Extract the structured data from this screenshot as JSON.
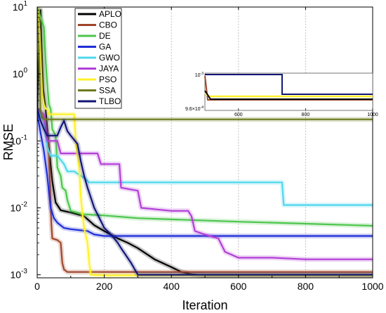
{
  "chart_data": {
    "type": "line",
    "title": "",
    "xlabel": "Iteration",
    "ylabel": "RMSE",
    "xlim": [
      0,
      1000
    ],
    "ylim": [
      0.0009,
      10
    ],
    "yscale": "log",
    "grid": "vertical dotted",
    "legend_position": "top-center",
    "x_ticks": [
      "0",
      "200",
      "400",
      "600",
      "800",
      "1000"
    ],
    "y_ticks": [
      {
        "base": "10",
        "exp": "1",
        "value": 10
      },
      {
        "base": "10",
        "exp": "0",
        "value": 1
      },
      {
        "base": "10",
        "exp": "-1",
        "value": 0.1
      },
      {
        "base": "10",
        "exp": "-2",
        "value": 0.01
      },
      {
        "base": "10",
        "exp": "-3",
        "value": 0.001
      }
    ],
    "series": [
      {
        "name": "APLO",
        "color": "#000000",
        "points": [
          [
            0,
            0.25
          ],
          [
            5,
            3.5
          ],
          [
            10,
            9
          ],
          [
            14,
            2
          ],
          [
            18,
            0.6
          ],
          [
            25,
            0.3
          ],
          [
            35,
            0.08
          ],
          [
            45,
            0.025
          ],
          [
            55,
            0.012
          ],
          [
            70,
            0.0092
          ],
          [
            100,
            0.0085
          ],
          [
            140,
            0.0075
          ],
          [
            170,
            0.0055
          ],
          [
            200,
            0.0045
          ],
          [
            240,
            0.0035
          ],
          [
            270,
            0.003
          ],
          [
            300,
            0.0025
          ],
          [
            350,
            0.0017
          ],
          [
            400,
            0.0013
          ],
          [
            430,
            0.0011
          ],
          [
            460,
            0.00102
          ],
          [
            500,
            0.00098
          ],
          [
            1000,
            0.00098
          ]
        ]
      },
      {
        "name": "CBO",
        "color": "#A0452A",
        "points": [
          [
            0,
            0.3
          ],
          [
            20,
            0.22
          ],
          [
            30,
            0.12
          ],
          [
            35,
            0.06
          ],
          [
            40,
            0.012
          ],
          [
            42,
            0.006
          ],
          [
            45,
            0.0035
          ],
          [
            60,
            0.0033
          ],
          [
            70,
            0.003
          ],
          [
            75,
            0.0015
          ],
          [
            80,
            0.0012
          ],
          [
            90,
            0.0011
          ],
          [
            150,
            0.0011
          ],
          [
            400,
            0.0011
          ],
          [
            1000,
            0.0011
          ]
        ]
      },
      {
        "name": "DE",
        "color": "#4CC64C",
        "points": [
          [
            0,
            10
          ],
          [
            10,
            7
          ],
          [
            20,
            5
          ],
          [
            25,
            1.6
          ],
          [
            30,
            0.7
          ],
          [
            35,
            0.35
          ],
          [
            40,
            0.3
          ],
          [
            45,
            0.15
          ],
          [
            55,
            0.12
          ],
          [
            60,
            0.04
          ],
          [
            70,
            0.03
          ],
          [
            75,
            0.02
          ],
          [
            85,
            0.018
          ],
          [
            90,
            0.013
          ],
          [
            100,
            0.009
          ],
          [
            140,
            0.008
          ],
          [
            200,
            0.0077
          ],
          [
            300,
            0.007
          ],
          [
            450,
            0.0066
          ],
          [
            600,
            0.0062
          ],
          [
            800,
            0.0058
          ],
          [
            1000,
            0.0054
          ]
        ]
      },
      {
        "name": "GA",
        "color": "#1E2ED8",
        "points": [
          [
            0,
            0.25
          ],
          [
            20,
            0.07
          ],
          [
            30,
            0.03
          ],
          [
            40,
            0.01
          ],
          [
            50,
            0.007
          ],
          [
            60,
            0.006
          ],
          [
            80,
            0.005
          ],
          [
            100,
            0.0048
          ],
          [
            150,
            0.0045
          ],
          [
            170,
            0.004
          ],
          [
            200,
            0.0038
          ],
          [
            300,
            0.0038
          ],
          [
            1000,
            0.0038
          ]
        ]
      },
      {
        "name": "GWO",
        "color": "#4FD7EC",
        "points": [
          [
            0,
            0.3
          ],
          [
            20,
            0.2
          ],
          [
            30,
            0.08
          ],
          [
            40,
            0.06
          ],
          [
            60,
            0.06
          ],
          [
            80,
            0.045
          ],
          [
            90,
            0.035
          ],
          [
            110,
            0.035
          ],
          [
            140,
            0.028
          ],
          [
            155,
            0.024
          ],
          [
            200,
            0.024
          ],
          [
            400,
            0.024
          ],
          [
            730,
            0.024
          ],
          [
            735,
            0.011
          ],
          [
            1000,
            0.011
          ]
        ]
      },
      {
        "name": "JAYA",
        "color": "#B23FD6",
        "points": [
          [
            0,
            0.3
          ],
          [
            20,
            0.25
          ],
          [
            30,
            0.1
          ],
          [
            60,
            0.1
          ],
          [
            70,
            0.065
          ],
          [
            100,
            0.065
          ],
          [
            180,
            0.065
          ],
          [
            190,
            0.045
          ],
          [
            245,
            0.045
          ],
          [
            250,
            0.02
          ],
          [
            300,
            0.018
          ],
          [
            310,
            0.01
          ],
          [
            400,
            0.009
          ],
          [
            450,
            0.009
          ],
          [
            460,
            0.0075
          ],
          [
            470,
            0.0045
          ],
          [
            500,
            0.004
          ],
          [
            540,
            0.0035
          ],
          [
            560,
            0.0022
          ],
          [
            600,
            0.0018
          ],
          [
            700,
            0.0018
          ],
          [
            800,
            0.0017
          ],
          [
            1000,
            0.0017
          ]
        ]
      },
      {
        "name": "PSO",
        "color": "#FFF12A",
        "points": [
          [
            0,
            10
          ],
          [
            5,
            6
          ],
          [
            10,
            2
          ],
          [
            15,
            0.5
          ],
          [
            20,
            0.35
          ],
          [
            25,
            0.3
          ],
          [
            30,
            0.3
          ],
          [
            35,
            0.25
          ],
          [
            110,
            0.25
          ],
          [
            115,
            0.1
          ],
          [
            120,
            0.06
          ],
          [
            125,
            0.04
          ],
          [
            130,
            0.015
          ],
          [
            135,
            0.008
          ],
          [
            140,
            0.005
          ],
          [
            150,
            0.003
          ],
          [
            155,
            0.0015
          ],
          [
            160,
            0.001
          ],
          [
            200,
            0.00098
          ],
          [
            1000,
            0.00098
          ]
        ]
      },
      {
        "name": "SSA",
        "color": "#6E7A1E",
        "points": [
          [
            0,
            10
          ],
          [
            5,
            2
          ],
          [
            10,
            0.3
          ],
          [
            15,
            0.22
          ],
          [
            20,
            0.21
          ],
          [
            1000,
            0.21
          ]
        ]
      },
      {
        "name": "TLBO",
        "color": "#131575",
        "points": [
          [
            0,
            0.3
          ],
          [
            10,
            0.2
          ],
          [
            20,
            0.15
          ],
          [
            30,
            0.12
          ],
          [
            40,
            0.12
          ],
          [
            60,
            0.12
          ],
          [
            70,
            0.16
          ],
          [
            80,
            0.2
          ],
          [
            90,
            0.14
          ],
          [
            100,
            0.12
          ],
          [
            120,
            0.09
          ],
          [
            130,
            0.05
          ],
          [
            140,
            0.03
          ],
          [
            150,
            0.02
          ],
          [
            170,
            0.01
          ],
          [
            180,
            0.008
          ],
          [
            200,
            0.005
          ],
          [
            220,
            0.004
          ],
          [
            240,
            0.003
          ],
          [
            250,
            0.0025
          ],
          [
            280,
            0.0015
          ],
          [
            300,
            0.001
          ],
          [
            1000,
            0.001
          ]
        ]
      }
    ],
    "inset": {
      "xlim": [
        500,
        1000
      ],
      "x_ticks": [
        "600",
        "800",
        "1000"
      ],
      "y_ticks": [
        {
          "label": "10",
          "exp": "-3"
        },
        {
          "label": "9.6×10",
          "exp": "-4"
        }
      ]
    }
  }
}
